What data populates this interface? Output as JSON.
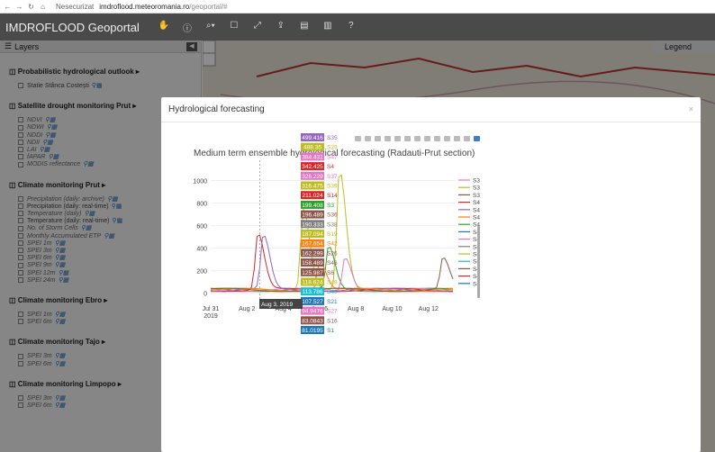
{
  "browser": {
    "security_label": "Nesecurizat",
    "url_host": "imdroflood.meteoromania.ro",
    "url_path": "/geoportal/#"
  },
  "app": {
    "title": "IMDROFLOOD Geoportal"
  },
  "layers_panel": {
    "title": "Layers",
    "groups": [
      {
        "title": "Probabilistic hydrological outlook",
        "items": [
          {
            "label": "Statie Stânca Costești",
            "italic": false
          }
        ]
      },
      {
        "title": "Satellite drought monitoring Prut",
        "items": [
          {
            "label": "NDVI",
            "italic": true
          },
          {
            "label": "NDWI",
            "italic": true
          },
          {
            "label": "NDDI",
            "italic": true
          },
          {
            "label": "NDII",
            "italic": true
          },
          {
            "label": "LAI",
            "italic": true
          },
          {
            "label": "fAPAR",
            "italic": true
          },
          {
            "label": "MODIS reflectance",
            "italic": true
          }
        ]
      },
      {
        "title": "Climate monitoring Prut",
        "items": [
          {
            "label": "Precipitation (daily: archive)",
            "italic": true
          },
          {
            "label": "Precipitation (daily: real-time)",
            "italic": false
          },
          {
            "label": "Temperature (daily)",
            "italic": true
          },
          {
            "label": "Temperature (daily: real-time)",
            "italic": false
          },
          {
            "label": "No. of Storm Cells",
            "italic": true
          },
          {
            "label": "Monthly Accumulated ETP",
            "italic": true
          },
          {
            "label": "SPEI 1m",
            "italic": true
          },
          {
            "label": "SPEI 3m",
            "italic": true
          },
          {
            "label": "SPEI 6m",
            "italic": true
          },
          {
            "label": "SPEI 9m",
            "italic": true
          },
          {
            "label": "SPEI 12m",
            "italic": true
          },
          {
            "label": "SPEI 24m",
            "italic": true
          }
        ]
      },
      {
        "title": "Climate monitoring Ebro",
        "items": [
          {
            "label": "SPEI 1m",
            "italic": true
          },
          {
            "label": "SPEI 6m",
            "italic": true
          }
        ]
      },
      {
        "title": "Climate monitoring Tajo",
        "items": [
          {
            "label": "SPEI 3m",
            "italic": true
          },
          {
            "label": "SPEI 6m",
            "italic": true
          }
        ]
      },
      {
        "title": "Climate monitoring Limpopo",
        "items": [
          {
            "label": "SPEI 3m",
            "italic": true
          },
          {
            "label": "SPEI 6m",
            "italic": true
          }
        ]
      }
    ]
  },
  "legend_panel": {
    "title": "Legend"
  },
  "modal": {
    "title": "Hydrological forecasting",
    "close_label": "×"
  },
  "chart_data": {
    "type": "line",
    "title": "Medium term ensemble hydrological forecasting (Radauti-Prut section)",
    "x_ticks": [
      "Jul 31\n2019",
      "Aug 2",
      "Aug 4",
      "Aug 6",
      "Aug 8",
      "Aug 10",
      "Aug 12"
    ],
    "y_ticks": [
      0,
      200,
      400,
      600,
      800,
      1000
    ],
    "ylim": [
      -50,
      1100
    ],
    "hover_x_label": "Aug 3, 2019",
    "hover_values": [
      {
        "name": "S35",
        "value": 499.416,
        "color": "#9467bd"
      },
      {
        "name": "S29",
        "value": 488.35,
        "color": "#bcbd22"
      },
      {
        "name": "S47",
        "value": 384.431,
        "color": "#e377c2"
      },
      {
        "name": "S4",
        "value": 342.425,
        "color": "#d62728"
      },
      {
        "name": "S37",
        "value": 326.229,
        "color": "#e377c2"
      },
      {
        "name": "S39",
        "value": 316.475,
        "color": "#bcbd22"
      },
      {
        "name": "S14",
        "value": 211.024,
        "color": "#d62728"
      },
      {
        "name": "S3",
        "value": 199.408,
        "color": "#2ca02c"
      },
      {
        "name": "S36",
        "value": 196.489,
        "color": "#8c564b"
      },
      {
        "name": "S38",
        "value": 190.333,
        "color": "#7f7f7f"
      },
      {
        "name": "S19",
        "value": 187.094,
        "color": "#bcbd22"
      },
      {
        "name": "S42",
        "value": 167.654,
        "color": "#ff7f0e"
      },
      {
        "name": "S26",
        "value": 162.299,
        "color": "#8c564b"
      },
      {
        "name": "S46",
        "value": 158.489,
        "color": "#8c564b"
      },
      {
        "name": "S6",
        "value": 125.987,
        "color": "#8c564b"
      },
      {
        "name": "S49",
        "value": 118.624,
        "color": "#bcbd22"
      },
      {
        "name": "S40",
        "value": 113.786,
        "color": "#17becf"
      },
      {
        "name": "S21",
        "value": 107.527,
        "color": "#1f77b4"
      },
      {
        "name": "S27",
        "value": 94.9476,
        "color": "#e377c2"
      },
      {
        "name": "S16",
        "value": 83.0843,
        "color": "#8c564b"
      },
      {
        "name": "S1",
        "value": 81.0195,
        "color": "#1f77b4"
      }
    ],
    "legend": [
      "S3",
      "S3",
      "S3",
      "S4",
      "S4",
      "S4",
      "S4",
      "S4",
      "S4",
      "S4",
      "S4",
      "S4",
      "S4",
      "S4",
      "S4"
    ],
    "series_peaks": [
      {
        "name": "S4",
        "color": "#bcbd22",
        "peak_x": 7.1,
        "peak_y": 1050
      },
      {
        "name": "S4",
        "color": "#bcbd22",
        "peak_x": 5.1,
        "peak_y": 720
      },
      {
        "name": "S4",
        "color": "#2ca02c",
        "peak_x": 6.5,
        "peak_y": 380
      },
      {
        "name": "S4",
        "color": "#e377c2",
        "peak_x": 7.4,
        "peak_y": 300
      },
      {
        "name": "S4",
        "color": "#d62728",
        "peak_x": 2.6,
        "peak_y": 500
      },
      {
        "name": "S4",
        "color": "#9467bd",
        "peak_x": 2.9,
        "peak_y": 480
      },
      {
        "name": "S4",
        "color": "#ff7f0e",
        "peak_x": 6.0,
        "peak_y": 260
      },
      {
        "name": "S4",
        "color": "#8c564b",
        "peak_x": 12.8,
        "peak_y": 280
      }
    ]
  }
}
